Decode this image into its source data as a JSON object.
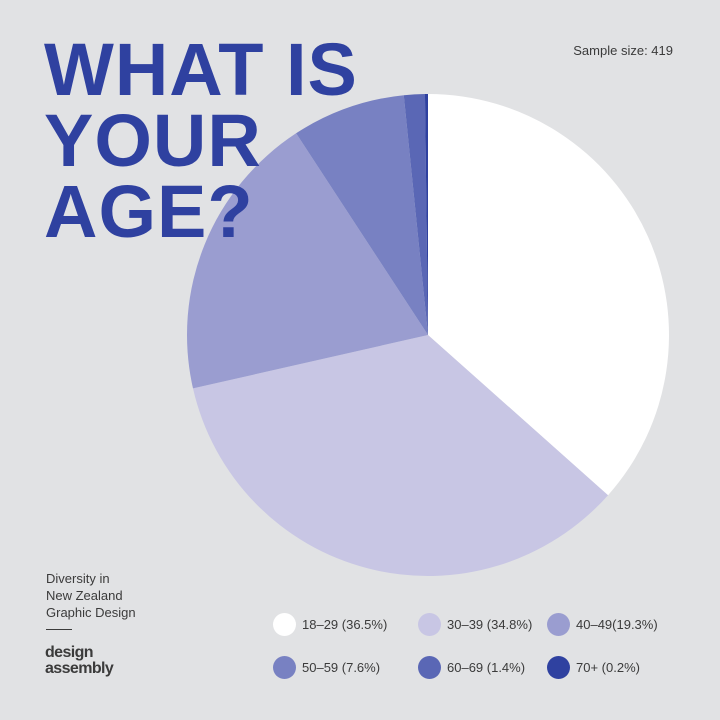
{
  "header": {
    "title_lines": [
      "WHAT IS",
      "YOUR",
      "AGE?"
    ],
    "sample_size": "Sample size: 419"
  },
  "footer": {
    "credit_lines": [
      "Diversity in",
      "New Zealand",
      "Graphic Design"
    ],
    "brand_lines": [
      "design",
      "assembly"
    ]
  },
  "chart_data": {
    "type": "pie",
    "categories": [
      "18–29",
      "30–39",
      "40–49",
      "50–59",
      "60–69",
      "70+"
    ],
    "values": [
      36.5,
      34.8,
      19.3,
      7.6,
      1.4,
      0.2
    ],
    "unit": "%",
    "colors": [
      "#ffffff",
      "#c8c6e4",
      "#9a9dd0",
      "#7881c2",
      "#5a67b5",
      "#2f41a0"
    ],
    "legend_labels": [
      "18–29 (36.5%)",
      "30–39 (34.8%)",
      "40–49(19.3%)",
      "50–59 (7.6%)",
      "60–69 (1.4%)",
      "70+ (0.2%)"
    ],
    "legend_position": "bottom",
    "start_angle": "12 o'clock, clockwise"
  }
}
